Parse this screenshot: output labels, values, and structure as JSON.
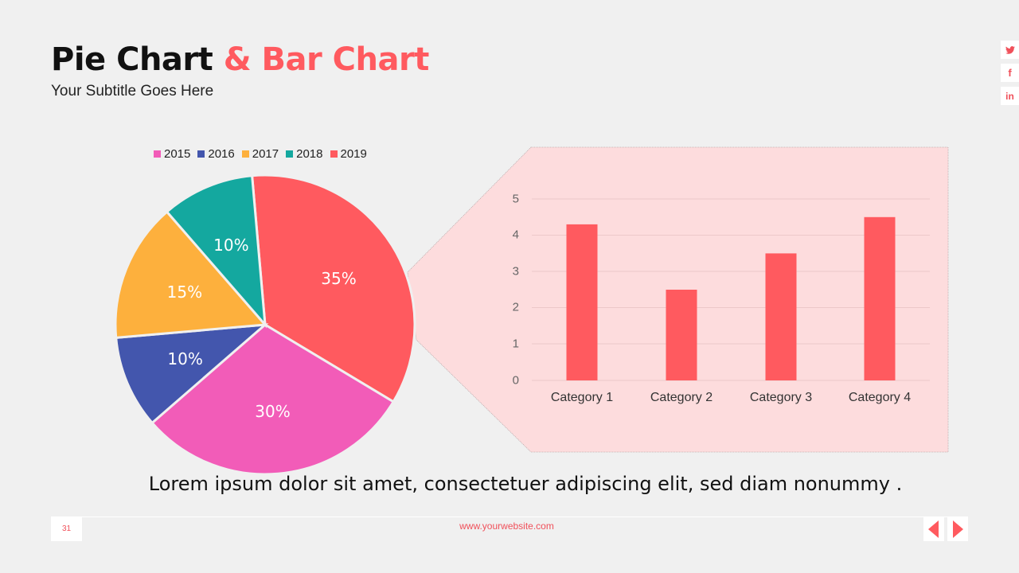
{
  "header": {
    "title_main": "Pie Chart",
    "title_accent": "& Bar Chart",
    "subtitle": "Your Subtitle Goes Here"
  },
  "social": [
    {
      "icon": "twitter-icon",
      "glyph": "🐦"
    },
    {
      "icon": "facebook-icon",
      "glyph": "f"
    },
    {
      "icon": "linkedin-icon",
      "glyph": "in"
    }
  ],
  "colors": {
    "accent": "#ff5a5f",
    "callout_bg": "#fddcdd",
    "background": "#f0f0f0"
  },
  "chart_data": [
    {
      "type": "pie",
      "legend_position": "top",
      "categories": [
        "2015",
        "2016",
        "2017",
        "2018",
        "2019"
      ],
      "values": [
        30,
        10,
        15,
        10,
        35
      ],
      "labels": [
        "30%",
        "10%",
        "15%",
        "10%",
        "35%"
      ],
      "colors": [
        "#f25cb8",
        "#4356ad",
        "#fdb03d",
        "#14a89f",
        "#ff5a5f"
      ]
    },
    {
      "type": "bar",
      "categories": [
        "Category 1",
        "Category 2",
        "Category 3",
        "Category 4"
      ],
      "values": [
        4.3,
        2.5,
        3.5,
        4.5
      ],
      "yticks": [
        "0",
        "1",
        "2",
        "3",
        "4",
        "5"
      ],
      "ylim": [
        0,
        5
      ],
      "grid": true,
      "bar_color": "#ff5a5f"
    }
  ],
  "caption": "Lorem ipsum dolor sit amet, consectetuer adipiscing elit, sed diam nonummy .",
  "footer": {
    "page_number": "31",
    "website": "www.yourwebsite.com"
  }
}
